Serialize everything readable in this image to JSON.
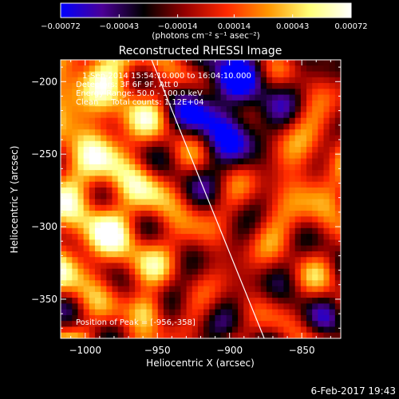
{
  "chart_data": {
    "type": "heatmap",
    "title": "Reconstructed RHESSI Image",
    "xlabel": "Heliocentric X (arcsec)",
    "ylabel": "Heliocentric Y (arcsec)",
    "xlim": [
      -1017,
      -823
    ],
    "ylim": [
      -377,
      -185
    ],
    "x_ticks": [
      -1000,
      -950,
      -900,
      -850
    ],
    "x_tick_labels": [
      "−1000",
      "−950",
      "−900",
      "−850"
    ],
    "y_ticks": [
      -200,
      -250,
      -300,
      -350
    ],
    "y_tick_labels": [
      "−200",
      "−250",
      "−300",
      "−350"
    ],
    "colorbar": {
      "min": -0.00072,
      "max": 0.00072,
      "ticks": [
        -0.00072,
        -0.00043,
        -0.00014,
        0.00014,
        0.00043,
        0.00072
      ],
      "tick_labels": [
        "−0.00072",
        "−0.00043",
        "−0.00014",
        "0.00014",
        "0.00043",
        "0.00072"
      ],
      "unit_label": "(photons cm⁻² s⁻¹ asec⁻²)",
      "colormap": [
        "#0000ff",
        "#4b0096",
        "#000000",
        "#960000",
        "#ff2800",
        "#ff9600",
        "#ffff78",
        "#ffffff"
      ]
    },
    "annotations": [
      "1-Sep-2014 15:54:10.000 to 16:04:10.000",
      "Detectors: 3F 6F 9F, Att 0",
      "Energy Range: 50.0 - 100.0 keV",
      "Clean     Total counts: 1.12E+04"
    ],
    "peak_label": "Position of Peak = [-956,-358]",
    "peak_position": [
      -956,
      -358
    ],
    "limb_line": {
      "x": [
        -954,
        -876
      ],
      "y": [
        -185,
        -377
      ]
    },
    "footer_date": "6-Feb-2017 19:43",
    "grid": false,
    "legend": "none"
  }
}
